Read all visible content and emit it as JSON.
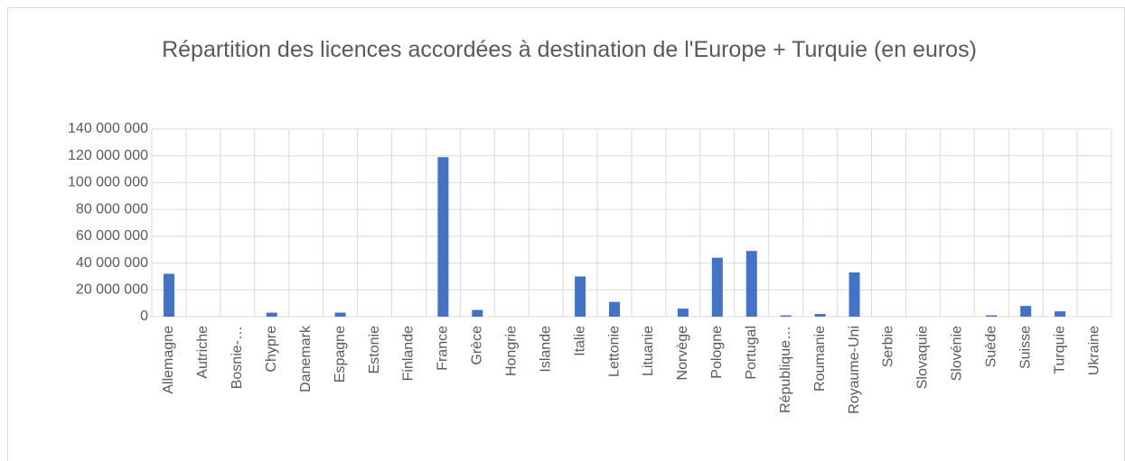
{
  "chart_data": {
    "type": "bar",
    "title": "Répartition des licences accordées à destination de l'Europe + Turquie (en euros)",
    "categories": [
      "Allemagne",
      "Autriche",
      "Bosnie-…",
      "Chypre",
      "Danemark",
      "Espagne",
      "Estonie",
      "Finlande",
      "France",
      "Grèce",
      "Hongrie",
      "Islande",
      "Italie",
      "Lettonie",
      "Lituanie",
      "Norvège",
      "Pologne",
      "Portugal",
      "République…",
      "Roumanie",
      "Royaume-Uni",
      "Serbie",
      "Slovaquie",
      "Slovénie",
      "Suède",
      "Suisse",
      "Turquie",
      "Ukraine"
    ],
    "values": [
      32000000,
      0,
      0,
      3000000,
      0,
      3000000,
      0,
      0,
      119000000,
      5000000,
      0,
      0,
      30000000,
      11000000,
      0,
      6000000,
      44000000,
      49000000,
      1000000,
      2000000,
      33000000,
      0,
      0,
      0,
      1000000,
      8000000,
      4000000,
      0
    ],
    "color": "#4472c4",
    "ylim": [
      0,
      140000000
    ],
    "yticks": [
      0,
      {
        "value": 20000000,
        "label": "20 000 000"
      },
      {
        "value": 40000000,
        "label": "40 000 000"
      },
      {
        "value": 60000000,
        "label": "60 000 000"
      },
      {
        "value": 80000000,
        "label": "80 000 000"
      },
      {
        "value": 100000000,
        "label": "100 000 000"
      },
      {
        "value": 120000000,
        "label": "120 000 000"
      },
      {
        "value": 140000000,
        "label": "140 000 000"
      }
    ],
    "grid": true
  }
}
